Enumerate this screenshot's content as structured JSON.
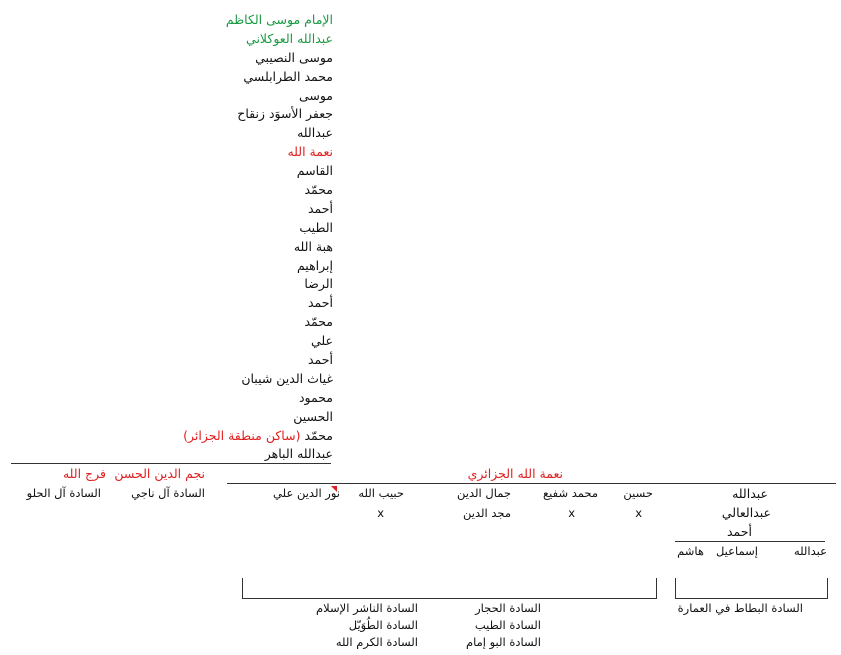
{
  "colors": {
    "green": "#1a9a43",
    "red": "#e02020",
    "black": "#111111",
    "line": "#333333"
  },
  "chain": [
    {
      "name": "الإمام موسى الكاظم",
      "color": "green"
    },
    {
      "name": "عبدالله العوكلاني",
      "color": "green"
    },
    {
      "name": "موسى النصيبي",
      "color": "black"
    },
    {
      "name": "محمد الطرابلسي",
      "color": "black"
    },
    {
      "name": "موسى",
      "color": "black"
    },
    {
      "name": "جعفر الأسوَد زنقاح",
      "color": "black"
    },
    {
      "name": "عبدالله",
      "color": "black"
    },
    {
      "name": "نعمة الله",
      "color": "red"
    },
    {
      "name": "القاسم",
      "color": "black"
    },
    {
      "name": "محمّد",
      "color": "black"
    },
    {
      "name": "أحمد",
      "color": "black"
    },
    {
      "name": "الطيب",
      "color": "black"
    },
    {
      "name": "هبة الله",
      "color": "black"
    },
    {
      "name": "إبراهيم",
      "color": "black"
    },
    {
      "name": "الرضا",
      "color": "black"
    },
    {
      "name": "أحمد",
      "color": "black"
    },
    {
      "name": "محمّد",
      "color": "black"
    },
    {
      "name": "علي",
      "color": "black"
    },
    {
      "name": "أحمد",
      "color": "black"
    },
    {
      "name": "غياث الدين شيبان",
      "color": "black"
    },
    {
      "name": "محمود",
      "color": "black"
    },
    {
      "name": "الحسين",
      "color": "black"
    },
    {
      "name": "محمّد",
      "color": "black",
      "note": "(ساكن منطقة الجزائر)"
    },
    {
      "name": "عبدالله الباهر",
      "color": "black"
    }
  ],
  "branches": {
    "faraj": {
      "name": "فرج الله",
      "family": "السادة آل الحلو"
    },
    "najm": {
      "name": "نجم الدين الحسن",
      "family": "السادة آل ناجي"
    },
    "nimat": {
      "name": "نعمة الله الجزائري"
    }
  },
  "sons": {
    "nur": "نور الدين علي",
    "habib": "حبيب الله",
    "habib_x": "x",
    "jamal": "جمال الدين",
    "majd": "مجد الدين",
    "shafi": "محمد شفيع",
    "shafi_x": "x",
    "husayn": "حسين",
    "husayn_x": "x"
  },
  "abdullah_chain": [
    "عبدالله",
    "عبدالعالي",
    "أحمد"
  ],
  "grandsons": [
    "عبدالله",
    "إسماعيل",
    "هاشم"
  ],
  "families_left_col1": [
    "السادة الناشر الإسلام",
    "السادة الطُوَيّل",
    "السادة الكرم الله"
  ],
  "families_left_col2": [
    "السادة الحجار",
    "السادة الطيب",
    "السادة البو إمام"
  ],
  "family_right": "السادة البطاط في العمارة"
}
